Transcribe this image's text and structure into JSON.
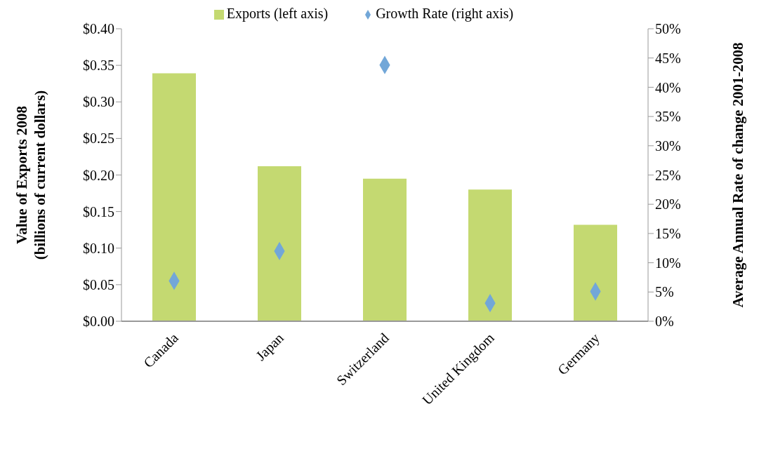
{
  "chart_data": {
    "type": "bar",
    "categories": [
      "Canada",
      "Japan",
      "Switzerland",
      "United Kingdom",
      "Germany"
    ],
    "series": [
      {
        "name": "Exports (left axis)",
        "color": "#c4d971",
        "values": [
          0.339,
          0.212,
          0.195,
          0.18,
          0.132
        ]
      },
      {
        "name": "Growth Rate (right axis)",
        "type": "scatter",
        "axis": "y2",
        "color": "#72a7d8",
        "values": [
          6.9,
          12.0,
          43.8,
          3.1,
          5.1
        ]
      }
    ],
    "ylabel": "Value of Exports 2008\n(billions of current dollars)",
    "y2label": "Average Annual Rate of change 2001-2008",
    "ylim": [
      0,
      0.4
    ],
    "yticks": [
      {
        "value": 0,
        "label": "$0.00"
      },
      {
        "value": 0.05,
        "label": "$0.05"
      },
      {
        "value": 0.1,
        "label": "$0.10"
      },
      {
        "value": 0.15,
        "label": "$0.15"
      },
      {
        "value": 0.2,
        "label": "$0.20"
      },
      {
        "value": 0.25,
        "label": "$0.25"
      },
      {
        "value": 0.3,
        "label": "$0.30"
      },
      {
        "value": 0.35,
        "label": "$0.35"
      },
      {
        "value": 0.4,
        "label": "$0.40"
      }
    ],
    "y2lim": [
      0,
      50
    ],
    "y2ticks": [
      {
        "value": 0,
        "label": "0%"
      },
      {
        "value": 5,
        "label": "5%"
      },
      {
        "value": 10,
        "label": "10%"
      },
      {
        "value": 15,
        "label": "15%"
      },
      {
        "value": 20,
        "label": "20%"
      },
      {
        "value": 25,
        "label": "25%"
      },
      {
        "value": 30,
        "label": "30%"
      },
      {
        "value": 35,
        "label": "35%"
      },
      {
        "value": 40,
        "label": "40%"
      },
      {
        "value": 45,
        "label": "45%"
      },
      {
        "value": 50,
        "label": "50%"
      }
    ],
    "marker": "diamond",
    "legend": "top",
    "grid": false
  }
}
